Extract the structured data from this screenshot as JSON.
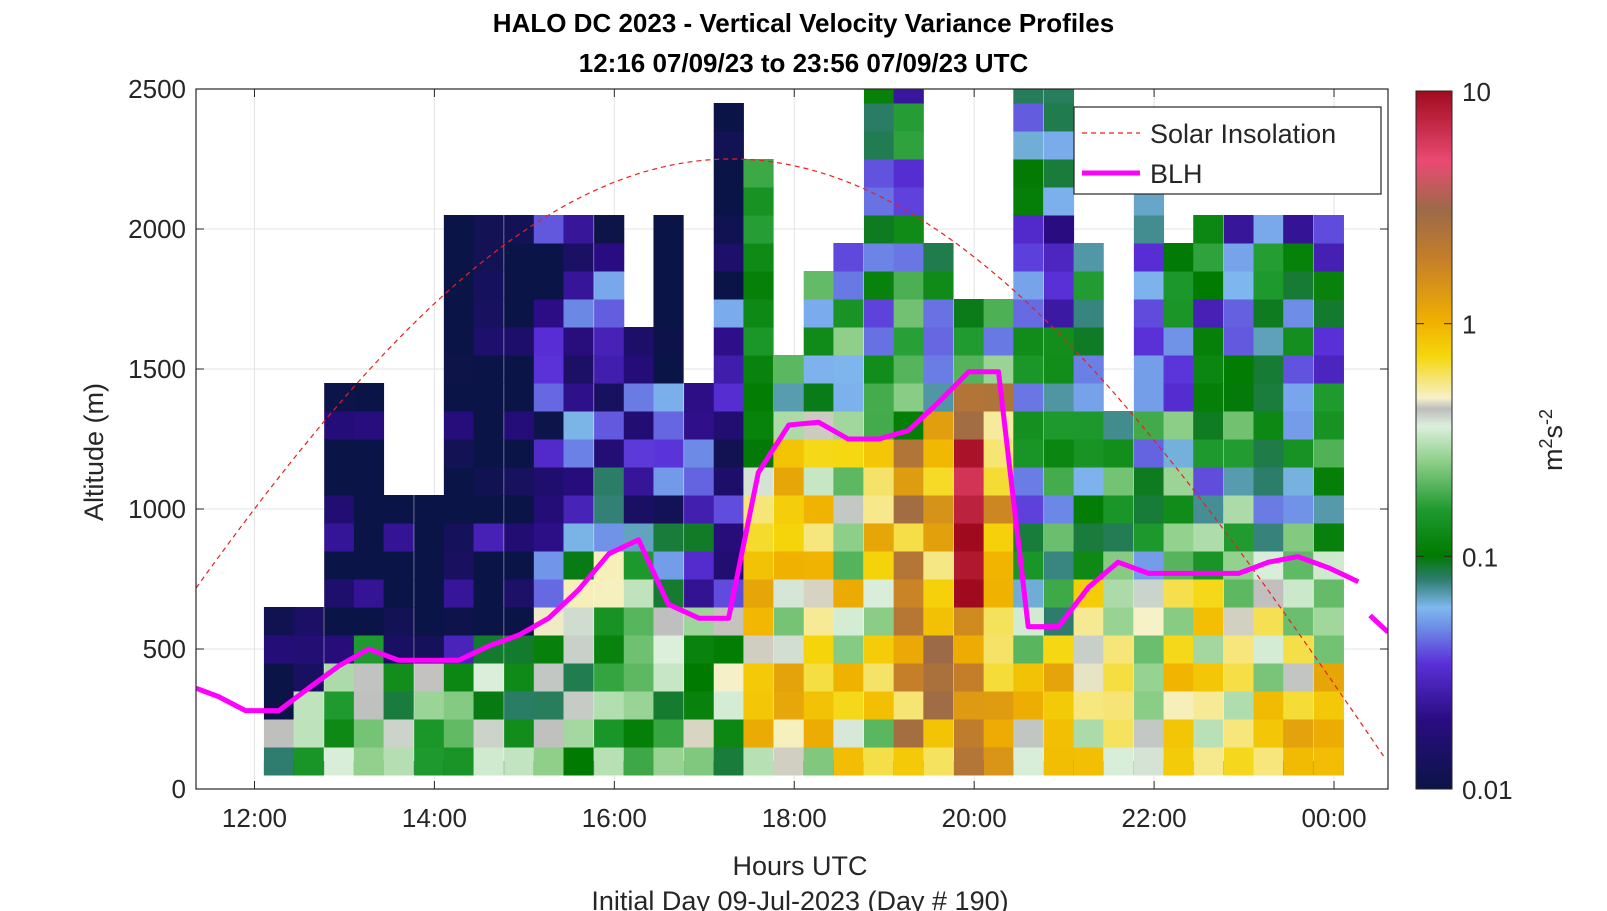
{
  "chart_data": {
    "type": "heatmap",
    "title": "HALO DC 2023 - Vertical Velocity Variance Profiles",
    "subtitle": "12:16 07/09/23 to 23:56 07/09/23  UTC",
    "xlabel": "Hours UTC",
    "xlabel2": "Initial Day 09-Jul-2023 (Day # 190)",
    "ylabel": "Altitude (m)",
    "colorbar_label_base": "m",
    "colorbar_label_sup1": "2",
    "colorbar_label_mid": "s",
    "colorbar_label_sup2": "-2",
    "x_tick_labels": [
      "12:00",
      "14:00",
      "16:00",
      "18:00",
      "20:00",
      "22:00",
      "00:00"
    ],
    "x_tick_hours": [
      12,
      14,
      16,
      18,
      20,
      22,
      24
    ],
    "xlim_hours": [
      11.35,
      24.6
    ],
    "y_ticks": [
      0,
      500,
      1000,
      1500,
      2000,
      2500
    ],
    "ylim": [
      0,
      2500
    ],
    "colorbar_ticks": [
      "0.01",
      "0.1",
      "1",
      "10"
    ],
    "colorbar_scale": "log",
    "colorbar_range": [
      0.01,
      10
    ],
    "grid": true,
    "legend_position": "top-right",
    "legend": [
      {
        "name": "Solar Insolation",
        "style": "dashed",
        "color": "#e8201c"
      },
      {
        "name": "BLH",
        "style": "solid",
        "color": "#ff00ff"
      }
    ],
    "time_hours": [
      12.27,
      12.6,
      12.94,
      13.27,
      13.6,
      13.94,
      14.27,
      14.6,
      14.94,
      15.27,
      15.6,
      15.94,
      16.27,
      16.6,
      16.94,
      17.27,
      17.6,
      17.94,
      18.27,
      18.6,
      18.94,
      19.27,
      19.6,
      19.94,
      20.27,
      20.6,
      20.94,
      21.27,
      21.6,
      21.94,
      22.27,
      22.6,
      22.94,
      23.27,
      23.6,
      23.94
    ],
    "altitudes_m": [
      100,
      200,
      300,
      400,
      500,
      600,
      700,
      800,
      900,
      1000,
      1100,
      1200,
      1300,
      1400,
      1500,
      1600,
      1700,
      1800,
      1900,
      2000,
      2100,
      2200,
      2300,
      2400,
      2500
    ],
    "variance_top_m": [
      650,
      650,
      1450,
      1400,
      1000,
      1000,
      2000,
      2000,
      2000,
      2000,
      2000,
      2000,
      1600,
      2050,
      1450,
      2400,
      2250,
      1500,
      1800,
      1900,
      2500,
      2500,
      1900,
      1700,
      1700,
      2500,
      2500,
      1950,
      1350,
      2100,
      1900,
      2050,
      2050,
      2050,
      2050,
      2050
    ],
    "blh": {
      "name": "BLH",
      "x": [
        11.35,
        11.6,
        11.9,
        12.27,
        12.6,
        12.94,
        13.27,
        13.6,
        13.94,
        14.27,
        14.6,
        14.94,
        15.27,
        15.6,
        15.94,
        16.27,
        16.6,
        16.94,
        17.27,
        17.6,
        17.94,
        18.27,
        18.6,
        18.94,
        19.27,
        19.6,
        19.94,
        20.27,
        20.6,
        20.94,
        21.27,
        21.6,
        21.94,
        22.27,
        22.6,
        22.94,
        23.27,
        23.6,
        23.94,
        24.27
      ],
      "y": [
        360,
        330,
        280,
        280,
        360,
        440,
        500,
        460,
        460,
        460,
        510,
        550,
        610,
        710,
        840,
        890,
        660,
        610,
        610,
        1130,
        1300,
        1310,
        1250,
        1250,
        1280,
        1380,
        1490,
        1490,
        580,
        580,
        720,
        810,
        770,
        770,
        770,
        770,
        810,
        830,
        790,
        740
      ]
    },
    "blh_tail": {
      "x": [
        24.4,
        24.6
      ],
      "y": [
        620,
        560
      ]
    },
    "solar": {
      "name": "Solar Insolation",
      "peak_hour": 17.3,
      "peak_m": 2250,
      "sunset_hour": 24.8
    }
  }
}
